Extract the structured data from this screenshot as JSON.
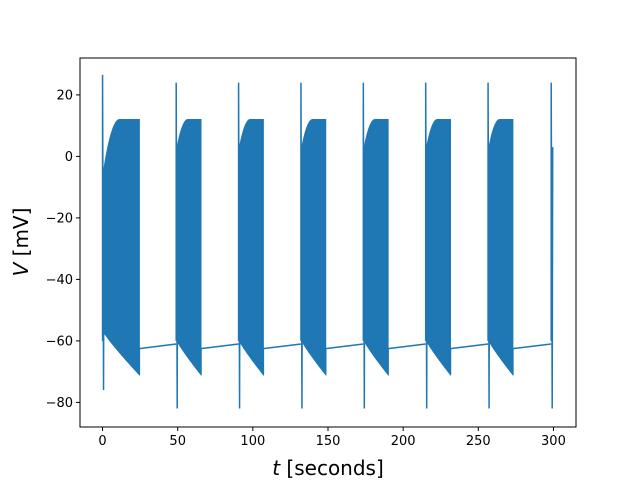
{
  "chart_data": {
    "type": "line",
    "title": "",
    "xlabel_var": "t",
    "xlabel_unit": " [seconds]",
    "ylabel_var": "V",
    "ylabel_unit": " [mV]",
    "xlim": [
      -15,
      315
    ],
    "ylim": [
      -88,
      32
    ],
    "xticks": [
      0,
      50,
      100,
      150,
      200,
      250,
      300
    ],
    "yticks": [
      -80,
      -60,
      -40,
      -20,
      0,
      20
    ],
    "grid": false,
    "legend": "none",
    "series_color": "#1f77b4",
    "bursts": [
      {
        "start": 0,
        "end": 24.5,
        "spike_peak": 26.5,
        "spike_trough": -76,
        "osc_hi_start": -5,
        "osc_hi": 12,
        "osc_lo_start": -57,
        "osc_lo_end": -71
      },
      {
        "start": 49,
        "end": 65.5,
        "spike_peak": 24,
        "spike_trough": -82,
        "osc_hi_start": 3,
        "osc_hi": 12,
        "osc_lo_start": -60,
        "osc_lo_end": -71
      },
      {
        "start": 90.5,
        "end": 107,
        "spike_peak": 24,
        "spike_trough": -82,
        "osc_hi_start": 3,
        "osc_hi": 12,
        "osc_lo_start": -60,
        "osc_lo_end": -71
      },
      {
        "start": 132,
        "end": 148.5,
        "spike_peak": 24,
        "spike_trough": -82,
        "osc_hi_start": 3,
        "osc_hi": 12,
        "osc_lo_start": -60,
        "osc_lo_end": -71
      },
      {
        "start": 173.5,
        "end": 190,
        "spike_peak": 24,
        "spike_trough": -82,
        "osc_hi_start": 3,
        "osc_hi": 12,
        "osc_lo_start": -60,
        "osc_lo_end": -71
      },
      {
        "start": 215,
        "end": 231.5,
        "spike_peak": 24,
        "spike_trough": -82,
        "osc_hi_start": 3,
        "osc_hi": 12,
        "osc_lo_start": -60,
        "osc_lo_end": -71
      },
      {
        "start": 256.5,
        "end": 273,
        "spike_peak": 24,
        "spike_trough": -82,
        "osc_hi_start": 3,
        "osc_hi": 12,
        "osc_lo_start": -60,
        "osc_lo_end": -71
      },
      {
        "start": 298.5,
        "end": 300,
        "spike_peak": 24,
        "spike_trough": -82,
        "osc_hi_start": 3,
        "osc_hi": 3,
        "osc_lo_start": -60,
        "osc_lo_end": -60
      }
    ],
    "baseline": [
      {
        "x": [
          24.5,
          49
        ],
        "y": [
          -62.5,
          -61
        ]
      },
      {
        "x": [
          65.5,
          90.5
        ],
        "y": [
          -62.5,
          -61
        ]
      },
      {
        "x": [
          107,
          132
        ],
        "y": [
          -62.5,
          -61
        ]
      },
      {
        "x": [
          148.5,
          173.5
        ],
        "y": [
          -62.5,
          -61
        ]
      },
      {
        "x": [
          190,
          215
        ],
        "y": [
          -62.5,
          -61
        ]
      },
      {
        "x": [
          231.5,
          256.5
        ],
        "y": [
          -62.5,
          -61
        ]
      },
      {
        "x": [
          273,
          298.5
        ],
        "y": [
          -62.5,
          -61
        ]
      }
    ]
  }
}
